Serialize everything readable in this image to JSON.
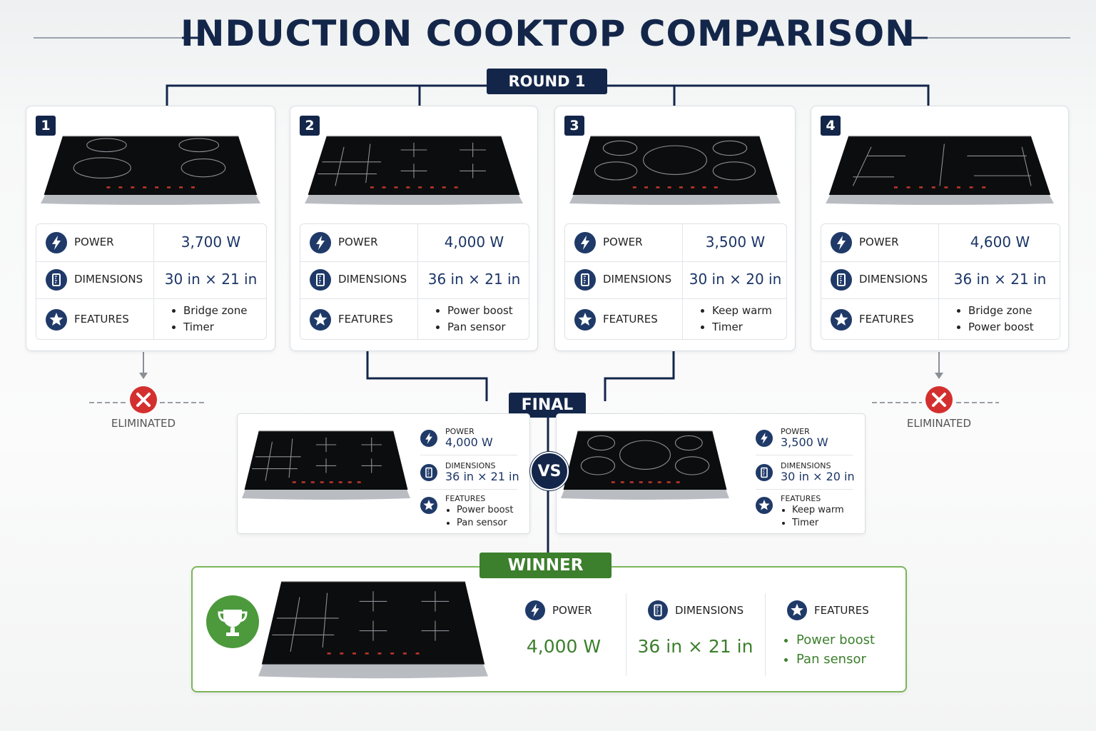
{
  "title": "INDUCTION COOKTOP COMPARISON",
  "round_label": "ROUND 1",
  "final_label": "FINAL",
  "vs_label": "VS",
  "winner_label": "WINNER",
  "eliminated": [
    {
      "label": "ELIMINATED"
    },
    {
      "label": "ELIMINATED"
    }
  ],
  "candidates": [
    {
      "number": "1",
      "power_label": "POWER",
      "power": "3,700 W",
      "dimensions_label": "DIMENSIONS",
      "dimensions": "30 in × 21 in",
      "features_label": "FEATURES",
      "features": [
        "Bridge zone",
        "Timer"
      ]
    },
    {
      "number": "2",
      "power_label": "POWER",
      "power": "4,000 W",
      "dimensions_label": "DIMENSIONS",
      "dimensions": "36 in × 21 in",
      "features_label": "FEATURES",
      "features": [
        "Power boost",
        "Pan sensor"
      ]
    },
    {
      "number": "3",
      "power_label": "POWER",
      "power": "3,500 W",
      "dimensions_label": "DIMENSIONS",
      "dimensions": "30 in × 20 in",
      "features_label": "FEATURES",
      "features": [
        "Keep warm",
        "Timer"
      ]
    },
    {
      "number": "4",
      "power_label": "POWER",
      "power": "4,600 W",
      "dimensions_label": "DIMENSIONS",
      "dimensions": "36 in × 21 in",
      "features_label": "FEATURES",
      "features": [
        "Bridge zone",
        "Power boost"
      ]
    }
  ],
  "finalists": [
    {
      "power_label": "POWER",
      "power": "4,000 W",
      "dimensions_label": "DIMENSIONS",
      "dimensions": "36 in × 21 in",
      "features_label": "FEATURES",
      "features": [
        "Power boost",
        "Pan sensor"
      ]
    },
    {
      "power_label": "POWER",
      "power": "3,500 W",
      "dimensions_label": "DIMENSIONS",
      "dimensions": "30 in × 20 in",
      "features_label": "FEATURES",
      "features": [
        "Keep warm",
        "Timer"
      ]
    }
  ],
  "winner": {
    "power_label": "POWER",
    "power": "4,000 W",
    "dimensions_label": "DIMENSIONS",
    "dimensions": "36 in × 21 in",
    "features_label": "FEATURES",
    "features": [
      "Power boost",
      "Pan sensor"
    ]
  }
}
